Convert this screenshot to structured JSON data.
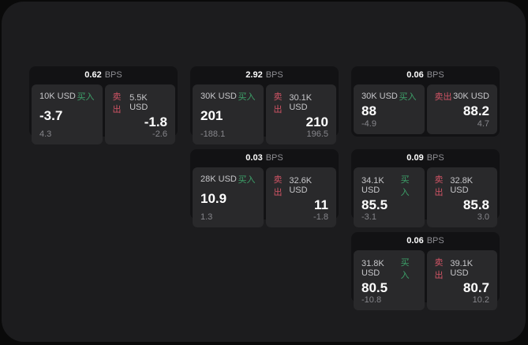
{
  "labels": {
    "buy": "买入",
    "sell": "卖出",
    "spread_unit": "BPS"
  },
  "colors": {
    "buy": "#3da169",
    "sell": "#d05465",
    "panel_bg": "#1c1c1e",
    "card_bg": "#121214",
    "tile_bg": "#29292b"
  },
  "cards": [
    {
      "col": 1,
      "row": 1,
      "bps": "0.62",
      "buy": {
        "amount": "10K USD",
        "price": "-3.7",
        "sub": "4.3"
      },
      "sell": {
        "amount": "5.5K USD",
        "price": "-1.8",
        "sub": "-2.6"
      }
    },
    {
      "col": 2,
      "row": 1,
      "bps": "2.92",
      "buy": {
        "amount": "30K USD",
        "price": "201",
        "sub": "-188.1"
      },
      "sell": {
        "amount": "30.1K USD",
        "price": "210",
        "sub": "196.5"
      }
    },
    {
      "col": 3,
      "row": 1,
      "bps": "0.06",
      "buy": {
        "amount": "30K USD",
        "price": "88",
        "sub": "-4.9"
      },
      "sell": {
        "amount": "30K USD",
        "price": "88.2",
        "sub": "4.7"
      }
    },
    {
      "col": 2,
      "row": 2,
      "bps": "0.03",
      "buy": {
        "amount": "28K USD",
        "price": "10.9",
        "sub": "1.3"
      },
      "sell": {
        "amount": "32.6K USD",
        "price": "11",
        "sub": "-1.8"
      }
    },
    {
      "col": 3,
      "row": 2,
      "bps": "0.09",
      "buy": {
        "amount": "34.1K USD",
        "price": "85.5",
        "sub": "-3.1"
      },
      "sell": {
        "amount": "32.8K USD",
        "price": "85.8",
        "sub": "3.0"
      }
    },
    {
      "col": 3,
      "row": 3,
      "bps": "0.06",
      "buy": {
        "amount": "31.8K USD",
        "price": "80.5",
        "sub": "-10.8"
      },
      "sell": {
        "amount": "39.1K USD",
        "price": "80.7",
        "sub": "10.2"
      }
    }
  ]
}
